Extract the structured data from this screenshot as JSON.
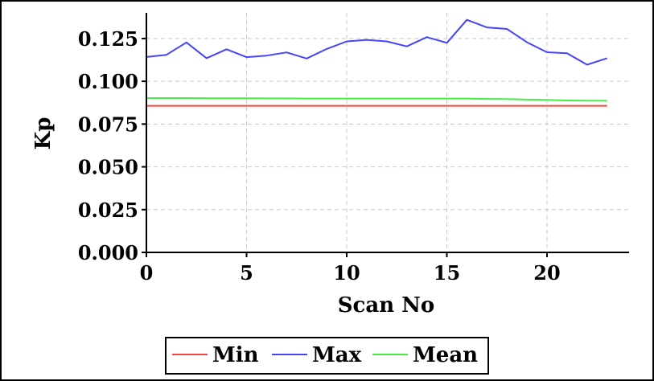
{
  "chart_data": {
    "type": "line",
    "title": "",
    "xlabel": "Scan No",
    "ylabel": "Kp",
    "xlim": [
      0,
      24
    ],
    "ylim": [
      0,
      0.14
    ],
    "x_ticks": [
      0,
      5,
      10,
      15,
      20
    ],
    "x_tick_labels": [
      "0",
      "5",
      "10",
      "15",
      "20"
    ],
    "y_ticks": [
      0,
      0.025,
      0.05,
      0.075,
      0.1,
      0.125
    ],
    "y_tick_labels": [
      "0.000",
      "0.025",
      "0.050",
      "0.075",
      "0.100",
      "0.125"
    ],
    "grid": true,
    "legend_position": "bottom",
    "x": [
      0,
      1,
      2,
      3,
      4,
      5,
      6,
      7,
      8,
      9,
      10,
      11,
      12,
      13,
      14,
      15,
      16,
      17,
      18,
      19,
      20,
      21,
      22,
      23
    ],
    "series": [
      {
        "name": "Min",
        "color": "#ff4444",
        "values": [
          0.0857,
          0.0857,
          0.0857,
          0.0857,
          0.0857,
          0.0857,
          0.0857,
          0.0857,
          0.0857,
          0.0857,
          0.0857,
          0.0857,
          0.0857,
          0.0857,
          0.0857,
          0.0857,
          0.0857,
          0.0857,
          0.0857,
          0.0857,
          0.0857,
          0.0857,
          0.0857,
          0.0857
        ]
      },
      {
        "name": "Max",
        "color": "#4444ff",
        "values": [
          0.1142,
          0.1155,
          0.1227,
          0.1135,
          0.1187,
          0.1141,
          0.115,
          0.1169,
          0.1133,
          0.1189,
          0.1233,
          0.1242,
          0.1233,
          0.1204,
          0.1258,
          0.1225,
          0.1359,
          0.1315,
          0.1306,
          0.1228,
          0.117,
          0.1164,
          0.1097,
          0.1135
        ]
      },
      {
        "name": "Mean",
        "color": "#44ee44",
        "values": [
          0.0902,
          0.0902,
          0.0902,
          0.0901,
          0.0901,
          0.0901,
          0.09,
          0.09,
          0.0899,
          0.0899,
          0.0899,
          0.0899,
          0.0899,
          0.0899,
          0.0899,
          0.0899,
          0.0899,
          0.0897,
          0.0896,
          0.0893,
          0.0891,
          0.0888,
          0.0887,
          0.0886
        ]
      }
    ]
  }
}
